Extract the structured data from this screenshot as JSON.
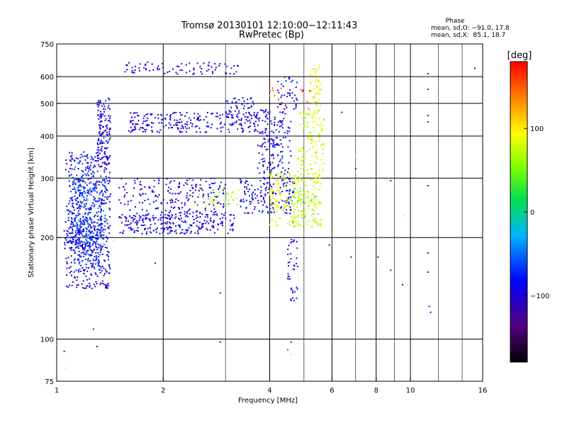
{
  "chart_data": {
    "type": "scatter",
    "title": "Tromsø 20130101 12:10:00−12:11:43",
    "subtitle": "RwPretec (Bp)",
    "xlabel": "Frequency [MHz]",
    "ylabel": "Stationary phase Virtual Height [km]",
    "x_scale": "log",
    "y_scale": "log",
    "xlim": [
      1,
      16
    ],
    "ylim": [
      75,
      750
    ],
    "x_ticks": [
      1,
      2,
      4,
      6,
      8,
      10,
      16
    ],
    "x_tick_labels": [
      "1",
      "2",
      "4",
      "6",
      "8",
      "10",
      "16"
    ],
    "x_minor_gridlines": [
      3,
      5,
      7,
      9,
      12,
      14
    ],
    "y_ticks": [
      75,
      100,
      200,
      300,
      400,
      500,
      600,
      750
    ],
    "y_tick_labels": [
      "75",
      "100",
      "200",
      "300",
      "400",
      "500",
      "600",
      "750"
    ],
    "grid": true,
    "stats": {
      "heading": "Phase",
      "line_o": "mean, sd,O: −91.0, 17.8",
      "line_x": "mean, sd,X:  85.1, 18.7"
    },
    "colorbar": {
      "label": "[deg]",
      "range": [
        -180,
        180
      ],
      "ticks": [
        100,
        0,
        -100
      ],
      "tick_labels": [
        "100",
        "0",
        "−100"
      ],
      "colormap": "rainbow-black-to-red"
    },
    "series": [
      {
        "phase_deg": -95,
        "clusters": [
          [
            1.06,
            1.42,
            140,
            360,
            460
          ],
          [
            1.3,
            1.42,
            330,
            520,
            130
          ],
          [
            1.05,
            1.35,
            185,
            215,
            80
          ],
          [
            1.5,
            3.2,
            205,
            235,
            260
          ],
          [
            1.5,
            3.0,
            235,
            300,
            170
          ],
          [
            1.6,
            3.7,
            410,
            470,
            230
          ],
          [
            3.0,
            3.7,
            450,
            520,
            50
          ],
          [
            1.55,
            3.3,
            610,
            665,
            80
          ],
          [
            3.3,
            4.7,
            235,
            300,
            150
          ],
          [
            3.7,
            4.6,
            300,
            480,
            170
          ],
          [
            4.2,
            4.8,
            480,
            610,
            40
          ],
          [
            4.5,
            4.8,
            130,
            200,
            40
          ],
          [
            1.12,
            1.3,
            170,
            205,
            20
          ],
          [
            2.0,
            2.8,
            235,
            290,
            30
          ]
        ]
      },
      {
        "phase_deg": -65,
        "clusters": [
          [
            1.1,
            1.38,
            190,
            300,
            200
          ],
          [
            1.15,
            1.35,
            160,
            230,
            80
          ],
          [
            1.12,
            1.3,
            270,
            350,
            40
          ]
        ]
      },
      {
        "phase_deg": 85,
        "clusters": [
          [
            4.0,
            5.6,
            215,
            310,
            230
          ],
          [
            4.8,
            5.7,
            300,
            470,
            120
          ],
          [
            5.2,
            5.6,
            470,
            650,
            50
          ],
          [
            2.4,
            3.3,
            245,
            285,
            30
          ]
        ]
      },
      {
        "phase_deg": 40,
        "clusters": [
          [
            4.6,
            5.5,
            215,
            280,
            35
          ],
          [
            2.5,
            3.3,
            250,
            270,
            10
          ]
        ]
      },
      {
        "phase_deg": 150,
        "clusters": [
          [
            4.0,
            5.2,
            480,
            560,
            15
          ]
        ]
      },
      {
        "phase_deg": -120,
        "points": [
          [
            1.05,
            92
          ],
          [
            1.3,
            95
          ],
          [
            1.27,
            107
          ],
          [
            1.9,
            168
          ],
          [
            2.9,
            98
          ],
          [
            2.9,
            137
          ],
          [
            4.6,
            98
          ],
          [
            5.9,
            190
          ],
          [
            6.4,
            470
          ],
          [
            6.8,
            175
          ],
          [
            7.0,
            320
          ],
          [
            8.1,
            175
          ],
          [
            8.8,
            295
          ],
          [
            8.8,
            160
          ],
          [
            9.5,
            145
          ],
          [
            11.2,
            612
          ],
          [
            11.2,
            550
          ],
          [
            11.2,
            460
          ],
          [
            11.2,
            440
          ],
          [
            11.2,
            285
          ],
          [
            11.2,
            180
          ],
          [
            11.2,
            158
          ],
          [
            11.3,
            125
          ],
          [
            11.4,
            120
          ],
          [
            15.2,
            635
          ]
        ]
      },
      {
        "phase_deg": 100,
        "points": [
          [
            1.06,
            82
          ],
          [
            1.45,
            196
          ],
          [
            4.6,
            90
          ],
          [
            7.0,
            350
          ],
          [
            9.6,
            232
          ],
          [
            11.8,
            525
          ]
        ]
      },
      {
        "phase_deg": 160,
        "points": [
          [
            4.5,
            93
          ]
        ]
      }
    ]
  }
}
